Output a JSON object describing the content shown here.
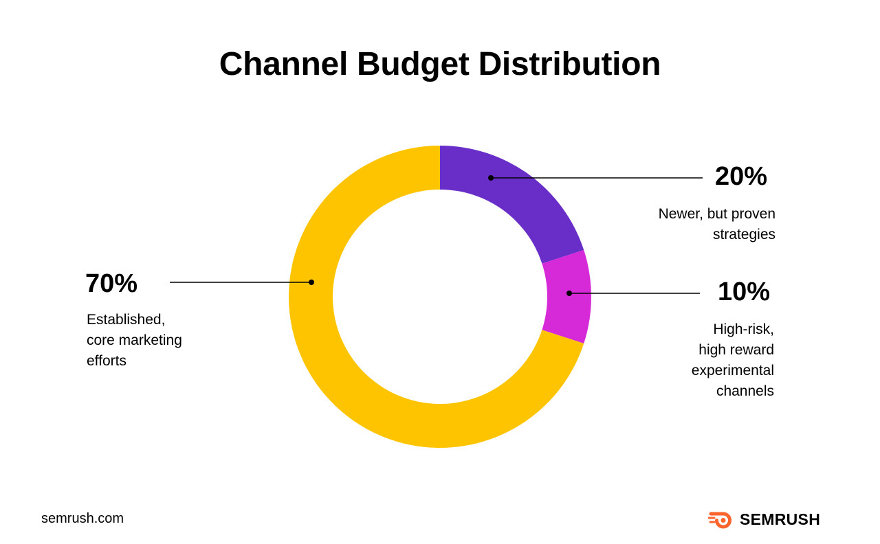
{
  "title": "Channel Budget Distribution",
  "chart_data": {
    "type": "pie",
    "style": "donut",
    "title": "Channel Budget Distribution",
    "slices": [
      {
        "value": 20,
        "percent_label": "20%",
        "label": "Newer, but proven strategies",
        "label_lines": [
          "Newer, but proven",
          "strategies"
        ],
        "color": "#6a2ec8"
      },
      {
        "value": 10,
        "percent_label": "10%",
        "label": "High-risk, high reward experimental channels",
        "label_lines": [
          "High-risk,",
          "high reward",
          "experimental",
          "channels"
        ],
        "color": "#d62ad8"
      },
      {
        "value": 70,
        "percent_label": "70%",
        "label": "Established, core marketing efforts",
        "label_lines": [
          "Established,",
          "core marketing",
          "efforts"
        ],
        "color": "#ffc400"
      }
    ]
  },
  "footer": {
    "url": "semrush.com",
    "brand": "SEMRUSH",
    "logo_icon": "semrush-flame-icon",
    "brand_color": "#ff642d"
  }
}
